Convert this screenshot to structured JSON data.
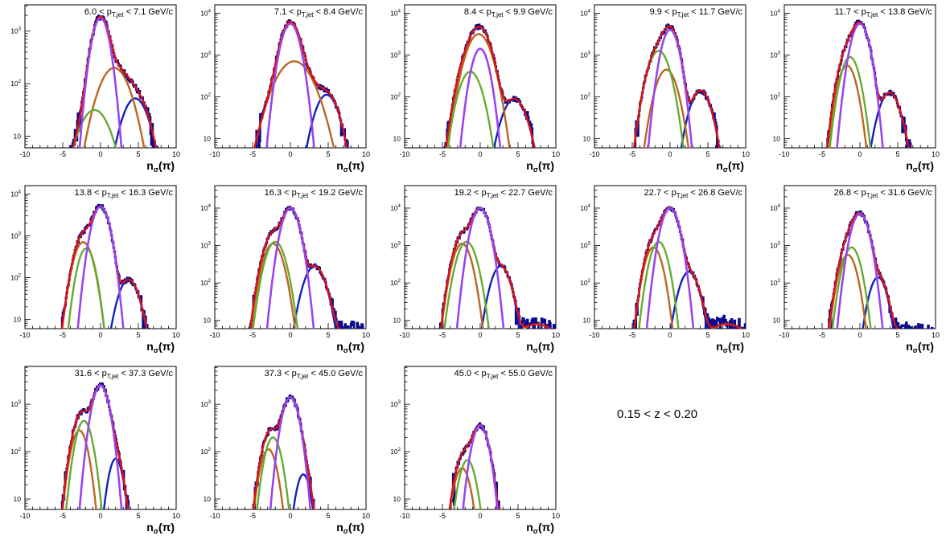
{
  "figure": {
    "z_range_label": "0.15 < z < 0.20"
  },
  "chart_data": {
    "type": "line",
    "xlabel": "nσ(π)",
    "xlim": [
      -10,
      10
    ],
    "yscale": "log",
    "x_ticks": [
      -10,
      -5,
      0,
      5,
      10
    ],
    "components": [
      {
        "name": "total",
        "color": "#dd1111"
      },
      {
        "name": "pion",
        "color": "#9944ee"
      },
      {
        "name": "kaon",
        "color": "#66aa33"
      },
      {
        "name": "proton",
        "color": "#bb6622"
      },
      {
        "name": "electron",
        "color": "#1122bb"
      },
      {
        "name": "background",
        "color": "#cccc44"
      }
    ],
    "data_color": "#0a0a8a",
    "panels": [
      {
        "label_lo": "6.0",
        "label_hi": "7.1",
        "ymax_exp": 3.5,
        "pion": [
          0,
          0.82,
          3.25
        ],
        "kaon": [
          -0.8,
          1.55,
          1.5
        ],
        "proton": [
          1.8,
          1.5,
          2.3
        ],
        "electron": [
          4.6,
          1.3,
          1.72
        ],
        "background": null
      },
      {
        "label_lo": "7.1",
        "label_hi": "8.4",
        "ymax_exp": 4.2,
        "pion": [
          0,
          0.85,
          3.75
        ],
        "kaon": null,
        "proton": [
          0.5,
          1.7,
          2.85
        ],
        "electron": [
          4.8,
          1.1,
          2.05
        ],
        "background": null
      },
      {
        "label_lo": "8.4",
        "label_hi": "9.9",
        "ymax_exp": 4.2,
        "pion": [
          0,
          0.8,
          3.15
        ],
        "kaon": [
          -1.3,
          1.05,
          2.6
        ],
        "proton": [
          -0.2,
          1.15,
          3.5
        ],
        "electron": [
          4.5,
          1.15,
          1.95
        ],
        "background": [
          9.5,
          1.5,
          0.2
        ]
      },
      {
        "label_lo": "9.9",
        "label_hi": "11.7",
        "ymax_exp": 4.2,
        "pion": [
          0,
          0.8,
          3.6
        ],
        "kaon": [
          -1.5,
          1.0,
          3.1
        ],
        "proton": [
          -0.5,
          1.0,
          2.65
        ],
        "electron": [
          4.0,
          1.0,
          2.15
        ],
        "background": null
      },
      {
        "label_lo": "11.7",
        "label_hi": "13.8",
        "ymax_exp": 4.2,
        "pion": [
          0,
          0.82,
          3.75
        ],
        "kaon": [
          -1.3,
          0.85,
          2.95
        ],
        "proton": [
          -1.7,
          0.85,
          2.75
        ],
        "electron": [
          3.9,
          1.0,
          2.1
        ],
        "background": [
          8.2,
          2.2,
          0.38
        ]
      },
      {
        "label_lo": "13.8",
        "label_hi": "16.3",
        "ymax_exp": 4.2,
        "pion": [
          0,
          0.82,
          3.7
        ],
        "kaon": [
          -1.9,
          0.8,
          2.7
        ],
        "proton": [
          -2.3,
          0.9,
          2.85
        ],
        "electron": [
          3.7,
          1.0,
          1.95
        ],
        "background": [
          10.5,
          5.5,
          0.25
        ]
      },
      {
        "label_lo": "16.3",
        "label_hi": "19.2",
        "ymax_exp": 4.6,
        "pion": [
          0,
          0.8,
          4.0
        ],
        "kaon": [
          -2.0,
          0.9,
          3.1
        ],
        "proton": [
          -2.3,
          0.9,
          3.05
        ],
        "electron": [
          3.2,
          1.0,
          2.45
        ],
        "background": [
          8.0,
          2.5,
          0.75
        ]
      },
      {
        "label_lo": "19.2",
        "label_hi": "22.7",
        "ymax_exp": 4.6,
        "pion": [
          0,
          0.8,
          4.0
        ],
        "kaon": [
          -1.8,
          0.9,
          3.1
        ],
        "proton": [
          -2.4,
          0.85,
          3.05
        ],
        "electron": [
          2.7,
          0.9,
          2.45
        ],
        "background": [
          7.5,
          2.3,
          0.9
        ]
      },
      {
        "label_lo": "22.7",
        "label_hi": "26.8",
        "ymax_exp": 4.6,
        "pion": [
          0,
          0.8,
          4.0
        ],
        "kaon": [
          -1.5,
          0.8,
          3.1
        ],
        "proton": [
          -2.2,
          0.8,
          2.95
        ],
        "electron": [
          2.5,
          0.9,
          2.3
        ],
        "background": [
          7.5,
          2.5,
          0.9
        ]
      },
      {
        "label_lo": "26.8",
        "label_hi": "31.6",
        "ymax_exp": 4.6,
        "pion": [
          0,
          0.8,
          3.85
        ],
        "kaon": [
          -1.1,
          0.8,
          2.95
        ],
        "proton": [
          -1.6,
          0.8,
          2.75
        ],
        "electron": [
          2.4,
          0.8,
          2.15
        ],
        "background": [
          5.0,
          6.5,
          0.72
        ]
      },
      {
        "label_lo": "31.6",
        "label_hi": "37.3",
        "ymax_exp": 3.8,
        "pion": [
          0,
          0.8,
          3.4
        ],
        "kaon": [
          -2.2,
          0.8,
          2.65
        ],
        "proton": [
          -2.8,
          0.8,
          2.45
        ],
        "electron": [
          2.0,
          0.7,
          1.85
        ],
        "background": [
          8.0,
          4.0,
          0.42
        ]
      },
      {
        "label_lo": "37.3",
        "label_hi": "45.0",
        "ymax_exp": 3.8,
        "pion": [
          0,
          0.8,
          3.15
        ],
        "kaon": [
          -2.3,
          0.8,
          2.3
        ],
        "proton": [
          -2.9,
          0.8,
          2.05
        ],
        "electron": [
          1.7,
          0.7,
          1.52
        ],
        "background": [
          8.0,
          8.0,
          0.22
        ]
      },
      {
        "label_lo": "45.0",
        "label_hi": "55.0",
        "ymax_exp": 3.8,
        "pion": [
          0,
          0.8,
          2.55
        ],
        "kaon": [
          -1.7,
          0.8,
          1.82
        ],
        "proton": [
          -2.4,
          0.8,
          1.65
        ],
        "electron": [
          1.5,
          0.7,
          0.7
        ],
        "background": [
          7.5,
          2.6,
          0.12
        ]
      }
    ]
  }
}
